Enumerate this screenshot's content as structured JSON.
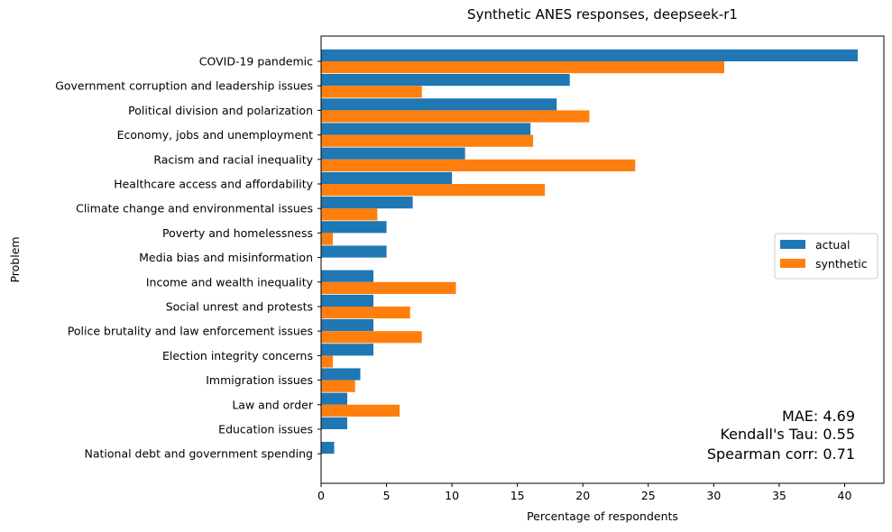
{
  "chart_data": {
    "type": "bar",
    "orientation": "horizontal",
    "title": "Synthetic ANES responses, deepseek-r1",
    "xlabel": "Percentage of respondents",
    "ylabel": "Problem",
    "xlim": [
      0,
      43
    ],
    "xticks": [
      0,
      5,
      10,
      15,
      20,
      25,
      30,
      35,
      40
    ],
    "categories": [
      "COVID-19 pandemic",
      "Government corruption and leadership issues",
      "Political division and polarization",
      "Economy, jobs and unemployment",
      "Racism and racial inequality",
      "Healthcare access and affordability",
      "Climate change and environmental issues",
      "Poverty and homelessness",
      "Media bias and misinformation",
      "Income and wealth inequality",
      "Social unrest and protests",
      "Police brutality and law enforcement issues",
      "Election integrity concerns",
      "Immigration issues",
      "Law and order",
      "Education issues",
      "National debt and government spending"
    ],
    "series": [
      {
        "name": "actual",
        "color": "#1f77b4",
        "values": [
          41,
          19,
          18,
          16,
          11,
          10,
          7,
          5,
          5,
          4,
          4,
          4,
          4,
          3,
          2,
          2,
          1
        ]
      },
      {
        "name": "synthetic",
        "color": "#ff7f0e",
        "values": [
          30.8,
          7.7,
          20.5,
          16.2,
          24.0,
          17.1,
          4.3,
          0.9,
          0,
          10.3,
          6.8,
          7.7,
          0.9,
          2.6,
          6.0,
          0,
          0
        ]
      }
    ],
    "legend": {
      "position": "center-right",
      "labels": [
        "actual",
        "synthetic"
      ]
    },
    "annotations": {
      "mae": "MAE: 4.69",
      "kendall": "Kendall's Tau: 0.55",
      "spearman": "Spearman corr: 0.71"
    }
  }
}
